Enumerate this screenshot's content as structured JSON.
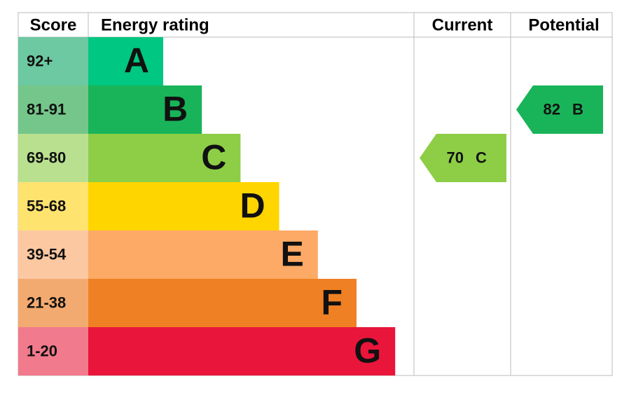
{
  "header": {
    "score": "Score",
    "energy_rating": "Energy rating",
    "current": "Current",
    "potential": "Potential"
  },
  "bands": [
    {
      "score": "92+",
      "rating": "A",
      "color": "#00c781",
      "score_color": "#6cc9a1"
    },
    {
      "score": "81-91",
      "rating": "B",
      "color": "#19b459",
      "score_color": "#74c68a"
    },
    {
      "score": "69-80",
      "rating": "C",
      "color": "#8dce46",
      "score_color": "#b9e08f"
    },
    {
      "score": "55-68",
      "rating": "D",
      "color": "#ffd500",
      "score_color": "#ffe36f"
    },
    {
      "score": "39-54",
      "rating": "E",
      "color": "#fcaa65",
      "score_color": "#fcc8a2"
    },
    {
      "score": "21-38",
      "rating": "F",
      "color": "#ef8023",
      "score_color": "#f3aa70"
    },
    {
      "score": "1-20",
      "rating": "G",
      "color": "#e9153b",
      "score_color": "#f17a8c"
    }
  ],
  "current": {
    "value": 70,
    "rating": "C"
  },
  "potential": {
    "value": 82,
    "rating": "B"
  }
}
